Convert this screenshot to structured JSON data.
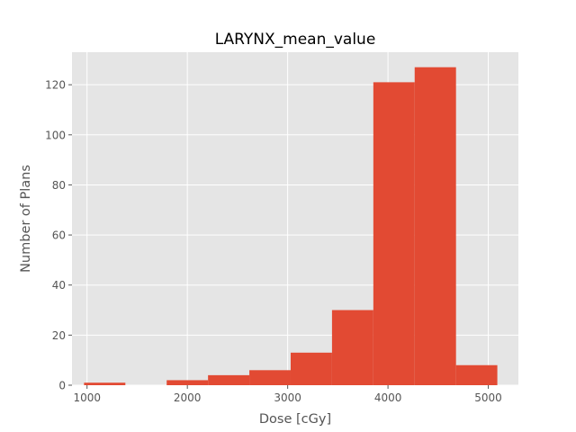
{
  "chart_data": {
    "type": "bar",
    "title": "LARYNX_mean_value",
    "xlabel": "Dose [cGy]",
    "ylabel": "Number of Plans",
    "xlim": [
      850,
      5300
    ],
    "ylim": [
      0,
      133
    ],
    "grid": true,
    "bin_edges": [
      970,
      1382,
      1794,
      2206,
      2618,
      3030,
      3442,
      3854,
      4266,
      4678,
      5090
    ],
    "values": [
      1,
      0,
      2,
      4,
      6,
      13,
      30,
      121,
      127,
      8
    ],
    "xticks": [
      1000,
      2000,
      3000,
      4000,
      5000
    ],
    "xtick_labels": [
      "1000",
      "2000",
      "3000",
      "4000",
      "5000"
    ],
    "yticks": [
      0,
      20,
      40,
      60,
      80,
      100,
      120
    ],
    "ytick_labels": [
      "0",
      "20",
      "40",
      "60",
      "80",
      "100",
      "120"
    ],
    "colors": {
      "bar": "#E24A33",
      "plot_bg": "#E5E5E5",
      "grid": "#FFFFFF",
      "tick": "#555555"
    }
  }
}
